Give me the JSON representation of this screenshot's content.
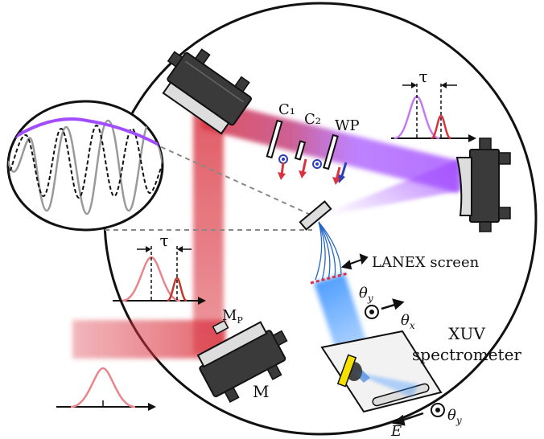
{
  "labels": {
    "tau_top": "τ",
    "tau_left": "τ",
    "c1": "C₁",
    "c2": "C₂",
    "wp": "WP",
    "lanex": "LANEX screen",
    "mp": "M",
    "mp_sub": "P",
    "m": "M",
    "xuv1": "XUV",
    "xuv2": "spectrometer",
    "theta_y1": "θ",
    "theta_y1_sub": "y",
    "theta_x": "θ",
    "theta_x_sub": "x",
    "theta_y2": "θ",
    "theta_y2_sub": "y",
    "energy": "E"
  },
  "colors": {
    "red_beam": "#d9333f",
    "red_pale": "#e8868c",
    "purple_beam": "#a24dff",
    "xuv_blue": "#2f8cff",
    "mount_dark": "#3a3a3a",
    "yellow_crystal": "#f5e000"
  }
}
